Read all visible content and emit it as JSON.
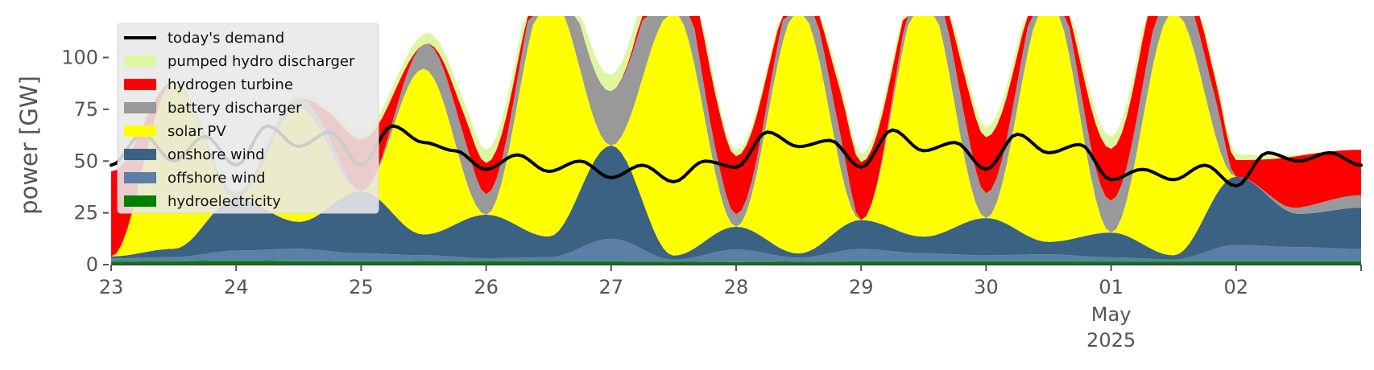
{
  "chart_data": {
    "type": "area",
    "ylabel": "power [GW]",
    "ylim": [
      0,
      120
    ],
    "yticks": [
      0,
      25,
      50,
      75,
      100
    ],
    "x_start": "2025-04-23",
    "x_end": "2025-05-03",
    "xticks": [
      {
        "date": "2025-04-23",
        "label": "23"
      },
      {
        "date": "2025-04-24",
        "label": "24"
      },
      {
        "date": "2025-04-25",
        "label": "25"
      },
      {
        "date": "2025-04-26",
        "label": "26"
      },
      {
        "date": "2025-04-27",
        "label": "27"
      },
      {
        "date": "2025-04-28",
        "label": "28"
      },
      {
        "date": "2025-04-29",
        "label": "29"
      },
      {
        "date": "2025-04-30",
        "label": "30"
      },
      {
        "date": "2025-05-01",
        "label": "01",
        "sublabels": [
          "May",
          "2025"
        ]
      },
      {
        "date": "2025-05-02",
        "label": "02"
      }
    ],
    "stack_order_bottom_to_top": [
      "hydroelectricity",
      "offshore wind",
      "onshore wind",
      "solar PV",
      "battery discharger",
      "hydrogen turbine",
      "pumped hydro discharger"
    ],
    "series": [
      {
        "name": "hydroelectricity",
        "color": "#008000",
        "x": [
          "2025-04-23",
          "2025-04-24",
          "2025-04-25",
          "2025-04-26",
          "2025-04-27",
          "2025-04-28",
          "2025-04-29",
          "2025-04-30",
          "2025-05-01",
          "2025-05-02",
          "2025-05-03"
        ],
        "values": [
          1.5,
          1.8,
          1.5,
          1.6,
          1.5,
          1.3,
          1.5,
          1.5,
          1.5,
          1.5,
          1.5
        ]
      },
      {
        "name": "offshore wind",
        "color": "#5b7fa6",
        "x": [
          "2025-04-23",
          "2025-04-23 12:00",
          "2025-04-24",
          "2025-04-24 12:00",
          "2025-04-25",
          "2025-04-25 12:00",
          "2025-04-26",
          "2025-04-26 12:00",
          "2025-04-27",
          "2025-04-27 12:00",
          "2025-04-28",
          "2025-04-28 12:00",
          "2025-04-29",
          "2025-04-29 12:00",
          "2025-04-30",
          "2025-04-30 12:00",
          "2025-05-01",
          "2025-05-01 12:00",
          "2025-05-02",
          "2025-05-02 12:00",
          "2025-05-03"
        ],
        "values": [
          1.5,
          2,
          5,
          6,
          4,
          3,
          1.5,
          2,
          11,
          1,
          6,
          2,
          6,
          4,
          3,
          3.5,
          2,
          1,
          8,
          7,
          6
        ]
      },
      {
        "name": "onshore wind",
        "color": "#3b6183",
        "x": [
          "2025-04-23",
          "2025-04-23 12:00",
          "2025-04-24",
          "2025-04-24 12:00",
          "2025-04-25",
          "2025-04-25 12:00",
          "2025-04-26",
          "2025-04-26 12:00",
          "2025-04-27",
          "2025-04-27 12:00",
          "2025-04-28",
          "2025-04-28 12:00",
          "2025-04-29",
          "2025-04-29 12:00",
          "2025-04-30",
          "2025-04-30 12:00",
          "2025-05-01",
          "2025-05-01 12:00",
          "2025-05-02",
          "2025-05-02 12:00",
          "2025-05-03"
        ],
        "values": [
          1,
          4,
          25,
          13,
          30,
          10,
          21,
          10,
          45,
          2,
          11,
          2,
          14,
          8,
          18,
          6,
          12,
          2,
          33,
          16,
          20
        ]
      },
      {
        "name": "solar PV",
        "color": "#ffff00",
        "x": [
          "2025-04-23",
          "2025-04-23 12:00",
          "2025-04-24",
          "2025-04-24 12:00",
          "2025-04-25",
          "2025-04-25 12:00",
          "2025-04-26",
          "2025-04-26 12:00",
          "2025-04-27",
          "2025-04-27 12:00",
          "2025-04-28",
          "2025-04-28 12:00",
          "2025-04-29",
          "2025-04-29 12:00",
          "2025-04-30",
          "2025-04-30 12:00",
          "2025-05-01",
          "2025-05-01 12:00",
          "2025-05-02",
          "2025-05-02 12:00",
          "2025-05-03"
        ],
        "values": [
          0,
          80,
          0,
          55,
          0,
          80,
          0,
          118,
          0,
          118,
          0,
          118,
          0,
          118,
          0,
          118,
          0,
          118,
          0,
          0,
          0
        ]
      },
      {
        "name": "battery discharger",
        "color": "#999999",
        "x": [
          "2025-04-23",
          "2025-04-24 18:00",
          "2025-04-25",
          "2025-04-25 20:00",
          "2025-04-26",
          "2025-04-27 06:00",
          "2025-04-27 08:00",
          "2025-04-27 20:00",
          "2025-04-28",
          "2025-04-28 20:00",
          "2025-04-29",
          "2025-04-29 20:00",
          "2025-04-30",
          "2025-05-01 20:00",
          "2025-05-02",
          "2025-05-03"
        ],
        "values": [
          0,
          5,
          0,
          18,
          10,
          28,
          35,
          12,
          6,
          16,
          0,
          20,
          12,
          18,
          0,
          6
        ]
      },
      {
        "name": "hydrogen turbine",
        "color": "#ff0000",
        "x": [
          "2025-04-23",
          "2025-04-23 12:00",
          "2025-04-24 12:00",
          "2025-04-25",
          "2025-04-25 12:00",
          "2025-04-26",
          "2025-04-26 12:00",
          "2025-04-27",
          "2025-04-28",
          "2025-04-28 12:00",
          "2025-04-29",
          "2025-04-29 12:00",
          "2025-04-30",
          "2025-04-30 12:00",
          "2025-05-01",
          "2025-05-02",
          "2025-05-02 12:00",
          "2025-05-03"
        ],
        "values": [
          41,
          0,
          0,
          25,
          0,
          15,
          0,
          0,
          28,
          0,
          28,
          0,
          27,
          0,
          25,
          8,
          25,
          22
        ]
      },
      {
        "name": "pumped hydro discharger",
        "color": "#ddf7a0",
        "x": [
          "2025-04-23",
          "2025-04-27 06:00",
          "2025-04-28",
          "2025-04-29",
          "2025-04-30",
          "2025-05-01",
          "2025-05-03"
        ],
        "values": [
          0,
          8,
          3,
          4,
          5,
          6,
          0
        ]
      }
    ],
    "demand": {
      "name": "today's demand",
      "color": "#000000",
      "x": [
        "2025-04-23",
        "2025-04-23 06:00",
        "2025-04-23 12:00",
        "2025-04-23 18:00",
        "2025-04-24",
        "2025-04-24 06:00",
        "2025-04-24 12:00",
        "2025-04-24 18:00",
        "2025-04-25",
        "2025-04-25 06:00",
        "2025-04-25 12:00",
        "2025-04-25 18:00",
        "2025-04-26",
        "2025-04-26 06:00",
        "2025-04-26 12:00",
        "2025-04-26 18:00",
        "2025-04-27",
        "2025-04-27 06:00",
        "2025-04-27 12:00",
        "2025-04-27 18:00",
        "2025-04-28",
        "2025-04-28 06:00",
        "2025-04-28 12:00",
        "2025-04-28 18:00",
        "2025-04-29",
        "2025-04-29 06:00",
        "2025-04-29 12:00",
        "2025-04-29 18:00",
        "2025-04-30",
        "2025-04-30 06:00",
        "2025-04-30 12:00",
        "2025-04-30 18:00",
        "2025-05-01",
        "2025-05-01 06:00",
        "2025-05-01 12:00",
        "2025-05-01 18:00",
        "2025-05-02",
        "2025-05-02 06:00",
        "2025-05-02 12:00",
        "2025-05-02 18:00",
        "2025-05-03"
      ],
      "values": [
        48,
        63,
        50,
        62,
        48,
        67,
        57,
        64,
        48,
        67,
        59,
        55,
        46,
        53,
        45,
        50,
        42,
        48,
        40,
        50,
        47,
        64,
        57,
        60,
        47,
        65,
        55,
        59,
        46,
        63,
        54,
        58,
        41,
        46,
        41,
        48,
        38,
        54,
        50,
        54,
        48
      ]
    },
    "legend": {
      "placement": "upper-left",
      "entries": [
        "today's demand",
        "pumped hydro discharger",
        "hydrogen turbine",
        "battery discharger",
        "solar PV",
        "onshore wind",
        "offshore wind",
        "hydroelectricity"
      ]
    },
    "grid": false
  }
}
